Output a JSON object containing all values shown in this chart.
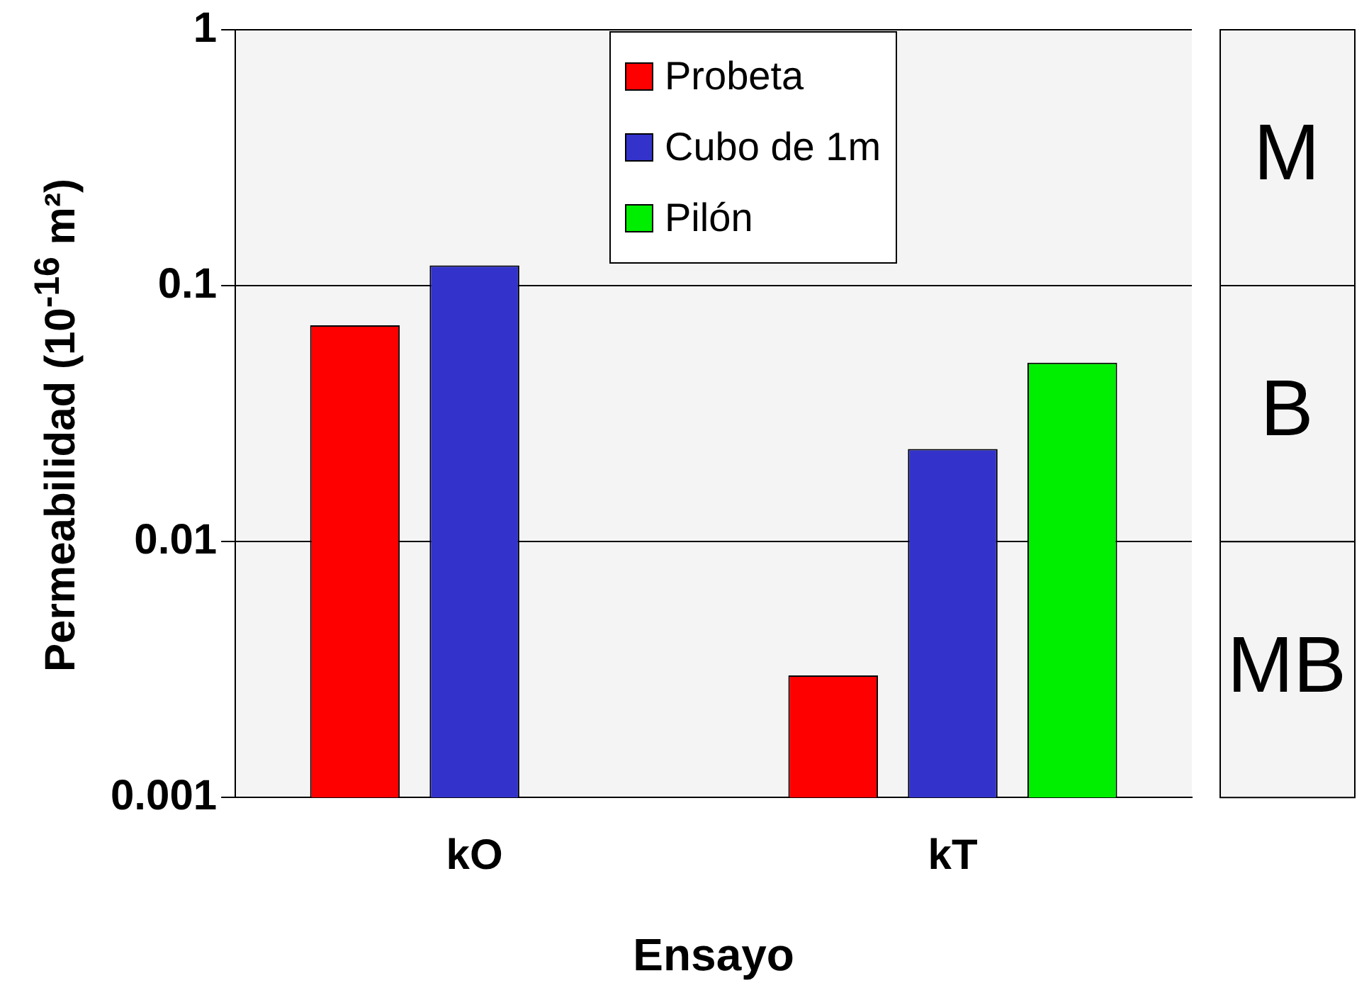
{
  "chart_data": {
    "type": "bar",
    "xlabel": "Ensayo",
    "ylabel": "Permeabilidad (10$^{-16}$ m²)",
    "categories": [
      "kO",
      "kT"
    ],
    "series": [
      {
        "name": "Probeta",
        "color": "#ff0000",
        "values": [
          0.07,
          0.003
        ]
      },
      {
        "name": "Cubo de 1m",
        "color": "#3333cc",
        "values": [
          0.12,
          0.023
        ]
      },
      {
        "name": "Pilón",
        "color": "#00ee00",
        "values": [
          null,
          0.05
        ]
      }
    ],
    "log": "y",
    "ylim": [
      0.001,
      1
    ],
    "yticks": [
      0.001,
      0.01,
      0.1,
      1
    ],
    "grid": "y",
    "legend": "top",
    "bands": [
      {
        "axis": "y",
        "from": 0.1,
        "to": 1,
        "label": "M",
        "color": "#f4f4f4"
      },
      {
        "axis": "y",
        "from": 0.01,
        "to": 0.1,
        "label": "B",
        "color": "#f4f4f4"
      },
      {
        "axis": "y",
        "from": 0.001,
        "to": 0.01,
        "label": "MB",
        "color": "#f4f4f4"
      }
    ]
  }
}
